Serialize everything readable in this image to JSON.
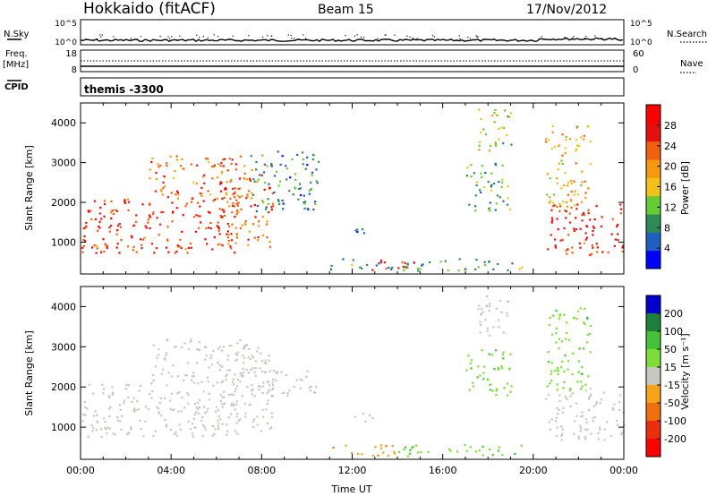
{
  "header": {
    "station": "Hokkaido (fitACF)",
    "beam": "Beam 15",
    "date": "17/Nov/2012"
  },
  "status_panel": {
    "nsky_label": "N.Sky",
    "nsky_ticks": [
      "10^5",
      "10^0"
    ],
    "nsearch_label": "N.Search",
    "nsearch_ticks": [
      "10^5",
      "10^0"
    ],
    "freq_label": "Freq.",
    "freq_unit": "[MHz]",
    "freq_ticks": [
      "18",
      "8"
    ],
    "nave_label": "Nave",
    "nave_ticks": [
      "60",
      "0"
    ],
    "cpid_label": "CPID",
    "cpid_value": "themis -3300"
  },
  "colors": {
    "power_scale": [
      "#0000ff",
      "#1f5fbf",
      "#2e8b57",
      "#66cc33",
      "#f2c21a",
      "#f59a10",
      "#f06010",
      "#e51010",
      "#ff0000"
    ],
    "velocity_scale": [
      "#0000cc",
      "#1f7f3f",
      "#46c23a",
      "#7ddc3a",
      "#c8c8c0",
      "#f5a31a",
      "#f07010",
      "#e8300f",
      "#ff0000"
    ]
  },
  "chart_data": [
    {
      "type": "heatmap",
      "name": "power_panel",
      "ylabel": "Slant Range [km]",
      "yticks": [
        1000,
        2000,
        3000,
        4000
      ],
      "ylim": [
        200,
        4500
      ],
      "xlim": [
        0,
        24
      ],
      "colorbar": {
        "label": "Power [dB]",
        "ticks": [
          "4",
          "8",
          "12",
          "16",
          "20",
          "24",
          "28"
        ],
        "range": [
          0,
          32
        ]
      },
      "echo_regions": [
        {
          "t0": 0.0,
          "t1": 7.0,
          "r0": 750,
          "r1": 2100,
          "level": 26
        },
        {
          "t0": 3.0,
          "t1": 7.5,
          "r0": 2100,
          "r1": 3200,
          "level": 22
        },
        {
          "t0": 6.0,
          "t1": 8.5,
          "r0": 900,
          "r1": 3000,
          "level": 24
        },
        {
          "t0": 7.5,
          "t1": 10.5,
          "r0": 1800,
          "r1": 3300,
          "level": 8
        },
        {
          "t0": 11.0,
          "t1": 19.5,
          "r0": 300,
          "r1": 600,
          "level": 10
        },
        {
          "t0": 12.5,
          "t1": 15.0,
          "r0": 320,
          "r1": 560,
          "level": 28
        },
        {
          "t0": 12.0,
          "t1": 13.0,
          "r0": 1100,
          "r1": 1400,
          "level": 8
        },
        {
          "t0": 17.5,
          "t1": 19.0,
          "r0": 3300,
          "r1": 4400,
          "level": 14
        },
        {
          "t0": 17.0,
          "t1": 19.0,
          "r0": 1800,
          "r1": 3000,
          "level": 10
        },
        {
          "t0": 20.5,
          "t1": 24.0,
          "r0": 700,
          "r1": 2000,
          "level": 26
        },
        {
          "t0": 20.5,
          "t1": 22.5,
          "r0": 1900,
          "r1": 4000,
          "level": 18
        }
      ]
    },
    {
      "type": "heatmap",
      "name": "velocity_panel",
      "ylabel": "Slant Range [km]",
      "xlabel": "Time UT",
      "yticks": [
        1000,
        2000,
        3000,
        4000
      ],
      "ylim": [
        200,
        4500
      ],
      "xlim": [
        0,
        24
      ],
      "xticks": [
        "00:00",
        "04:00",
        "08:00",
        "12:00",
        "16:00",
        "20:00",
        "00:00"
      ],
      "colorbar": {
        "label": "Velocity [m s⁻¹]",
        "ticks": [
          "200",
          "100",
          "50",
          "15",
          "-15",
          "-50",
          "-100",
          "-200"
        ],
        "range": [
          -250,
          250
        ]
      },
      "echo_regions": [
        {
          "t0": 0.0,
          "t1": 7.0,
          "r0": 750,
          "r1": 2100,
          "level": 0
        },
        {
          "t0": 3.0,
          "t1": 7.5,
          "r0": 2100,
          "r1": 3200,
          "level": 0
        },
        {
          "t0": 6.0,
          "t1": 8.5,
          "r0": 900,
          "r1": 3000,
          "level": 0
        },
        {
          "t0": 7.5,
          "t1": 10.5,
          "r0": 1800,
          "r1": 2500,
          "level": 0
        },
        {
          "t0": 11.0,
          "t1": 14.0,
          "r0": 300,
          "r1": 600,
          "level": -40
        },
        {
          "t0": 14.0,
          "t1": 19.5,
          "r0": 300,
          "r1": 600,
          "level": 40
        },
        {
          "t0": 12.0,
          "t1": 13.0,
          "r0": 1100,
          "r1": 1400,
          "level": 0
        },
        {
          "t0": 17.5,
          "t1": 19.0,
          "r0": 3300,
          "r1": 4400,
          "level": 0
        },
        {
          "t0": 17.0,
          "t1": 19.0,
          "r0": 1800,
          "r1": 3000,
          "level": 40
        },
        {
          "t0": 20.5,
          "t1": 24.0,
          "r0": 700,
          "r1": 2000,
          "level": 0
        },
        {
          "t0": 20.5,
          "t1": 22.5,
          "r0": 1900,
          "r1": 4000,
          "level": 40
        }
      ]
    }
  ]
}
